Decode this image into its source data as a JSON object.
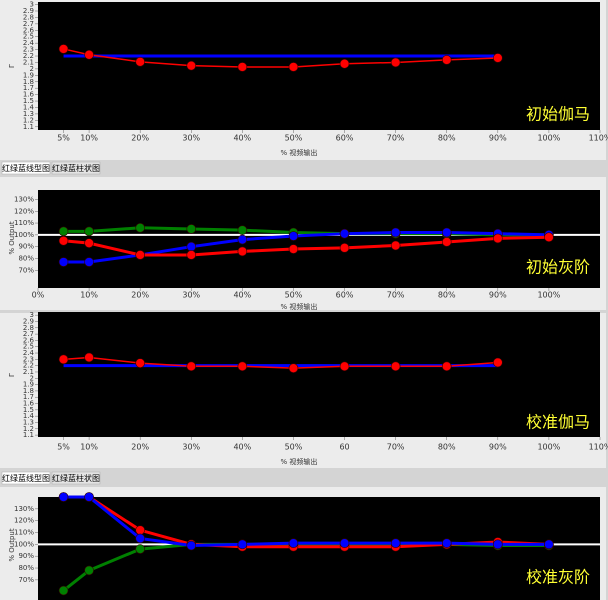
{
  "tab_bars": [
    {
      "tabs": [
        "红绿蓝线型图",
        "红绿蓝柱状图"
      ]
    },
    {
      "tabs": [
        "红绿蓝线型图",
        "红绿蓝柱状图"
      ]
    }
  ],
  "chart_data": [
    {
      "type": "line",
      "title": "初始伽马",
      "xlabel": "% 视频输出",
      "ylabel": "Γ",
      "xlim": [
        0,
        110
      ],
      "ylim": [
        1.05,
        3.04
      ],
      "xticks": [
        {
          "value": 5,
          "label": "5%"
        },
        {
          "value": 10,
          "label": "10%"
        },
        {
          "value": 20,
          "label": "20%"
        },
        {
          "value": 30,
          "label": "30%"
        },
        {
          "value": 40,
          "label": "40%"
        },
        {
          "value": 50,
          "label": "50%"
        },
        {
          "value": 60,
          "label": "60%"
        },
        {
          "value": 70,
          "label": "70%"
        },
        {
          "value": 80,
          "label": "80%"
        },
        {
          "value": 90,
          "label": "90%"
        },
        {
          "value": 100,
          "label": "100%"
        },
        {
          "value": 110,
          "label": "110%"
        }
      ],
      "yticks": [
        1.1,
        1.2,
        1.3,
        1.4,
        1.5,
        1.6,
        1.7,
        1.8,
        1.9,
        2,
        2.1,
        2.2,
        2.3,
        2.4,
        2.5,
        2.6,
        2.7,
        2.8,
        2.9,
        3
      ],
      "series": [
        {
          "color": "#0000ff",
          "line_width": 3,
          "markers": false,
          "x": [
            5,
            90
          ],
          "values": [
            2.2,
            2.2
          ]
        },
        {
          "color": "#ff0000",
          "line_width": 1.5,
          "markers": true,
          "x": [
            5,
            10,
            20,
            30,
            40,
            50,
            60,
            70,
            80,
            90
          ],
          "values": [
            2.31,
            2.22,
            2.11,
            2.05,
            2.03,
            2.03,
            2.08,
            2.1,
            2.14,
            2.17
          ]
        }
      ]
    },
    {
      "type": "line",
      "title": "初始灰阶",
      "xlabel": "% 视频输出",
      "ylabel": "% Output",
      "xlim": [
        0,
        110
      ],
      "ylim": [
        55,
        138
      ],
      "xticks": [
        {
          "value": 0,
          "label": "0%"
        },
        {
          "value": 10,
          "label": "10%"
        },
        {
          "value": 20,
          "label": "20%"
        },
        {
          "value": 30,
          "label": "30%"
        },
        {
          "value": 40,
          "label": "40%"
        },
        {
          "value": 50,
          "label": "50%"
        },
        {
          "value": 60,
          "label": "60%"
        },
        {
          "value": 70,
          "label": "70%"
        },
        {
          "value": 80,
          "label": "80%"
        },
        {
          "value": 90,
          "label": "90%"
        },
        {
          "value": 100,
          "label": "100%"
        }
      ],
      "yticks": [
        {
          "value": 70,
          "label": "70%"
        },
        {
          "value": 80,
          "label": "80%"
        },
        {
          "value": 90,
          "label": "90%"
        },
        {
          "value": 100,
          "label": "100%"
        },
        {
          "value": 110,
          "label": "110%"
        },
        {
          "value": 120,
          "label": "120%"
        },
        {
          "value": 130,
          "label": "130%"
        }
      ],
      "hline": {
        "value": 100,
        "color": "#ffffff"
      },
      "series": [
        {
          "color": "#008000",
          "line_width": 3,
          "markers": true,
          "x": [
            5,
            10,
            20,
            30,
            40,
            50,
            60,
            70,
            80,
            90,
            100
          ],
          "values": [
            103,
            103,
            106,
            105,
            104,
            102,
            101,
            101,
            101,
            100,
            100
          ]
        },
        {
          "color": "#0000ff",
          "line_width": 3,
          "markers": true,
          "x": [
            5,
            10,
            20,
            30,
            40,
            50,
            60,
            70,
            80,
            90,
            100
          ],
          "values": [
            77,
            77,
            83,
            90,
            96,
            99,
            101,
            102,
            102,
            101,
            100
          ]
        },
        {
          "color": "#ff0000",
          "line_width": 3,
          "markers": true,
          "x": [
            5,
            10,
            20,
            30,
            40,
            50,
            60,
            70,
            80,
            90,
            100
          ],
          "values": [
            95,
            93,
            83,
            83,
            86,
            88,
            89,
            91,
            94,
            97,
            98
          ]
        }
      ]
    },
    {
      "type": "line",
      "title": "校准伽马",
      "xlabel": "% 视频输出",
      "ylabel": "Γ",
      "xlim": [
        0,
        110
      ],
      "ylim": [
        1.07,
        3.05
      ],
      "xticks": [
        {
          "value": 5,
          "label": "5%"
        },
        {
          "value": 10,
          "label": "10%"
        },
        {
          "value": 20,
          "label": "20%"
        },
        {
          "value": 30,
          "label": "30%"
        },
        {
          "value": 40,
          "label": "40%"
        },
        {
          "value": 50,
          "label": "50%"
        },
        {
          "value": 60,
          "label": "60"
        },
        {
          "value": 70,
          "label": "70%"
        },
        {
          "value": 80,
          "label": "80%"
        },
        {
          "value": 90,
          "label": "90%"
        },
        {
          "value": 100,
          "label": "100%"
        },
        {
          "value": 110,
          "label": "110%"
        }
      ],
      "yticks": [
        1.1,
        1.2,
        1.3,
        1.4,
        1.5,
        1.6,
        1.7,
        1.8,
        1.9,
        2,
        2.1,
        2.2,
        2.3,
        2.4,
        2.5,
        2.6,
        2.7,
        2.8,
        2.9,
        3
      ],
      "series": [
        {
          "color": "#0000ff",
          "line_width": 3,
          "markers": false,
          "x": [
            5,
            90
          ],
          "values": [
            2.2,
            2.2
          ]
        },
        {
          "color": "#ff0000",
          "line_width": 1.5,
          "markers": true,
          "x": [
            5,
            10,
            20,
            30,
            40,
            50,
            60,
            70,
            80,
            90
          ],
          "values": [
            2.3,
            2.33,
            2.24,
            2.19,
            2.19,
            2.16,
            2.19,
            2.19,
            2.19,
            2.25
          ]
        }
      ]
    },
    {
      "type": "line",
      "title": "校准灰阶",
      "ylabel": "% Output",
      "xlim": [
        0,
        110
      ],
      "ylim": [
        53,
        140
      ],
      "yticks": [
        {
          "value": 70,
          "label": "70%"
        },
        {
          "value": 80,
          "label": "80%"
        },
        {
          "value": 90,
          "label": "90%"
        },
        {
          "value": 100,
          "label": "100%"
        },
        {
          "value": 110,
          "label": "110%"
        },
        {
          "value": 120,
          "label": "120%"
        },
        {
          "value": 130,
          "label": "130%"
        }
      ],
      "hline": {
        "value": 100,
        "color": "#ffffff"
      },
      "series": [
        {
          "color": "#008000",
          "line_width": 3,
          "markers": true,
          "x": [
            5,
            10,
            20,
            30,
            40,
            50,
            60,
            70,
            80,
            90,
            100
          ],
          "values": [
            61,
            78,
            96,
            100,
            100,
            100,
            100,
            100,
            100,
            99,
            99
          ]
        },
        {
          "color": "#ff0000",
          "line_width": 3,
          "markers": true,
          "x": [
            5,
            10,
            20,
            30,
            40,
            50,
            60,
            70,
            80,
            90,
            100
          ],
          "values": [
            140,
            140,
            112,
            100,
            98,
            98,
            98,
            98,
            100,
            102,
            100
          ]
        },
        {
          "color": "#0000ff",
          "line_width": 3,
          "markers": true,
          "x": [
            5,
            10,
            20,
            30,
            40,
            50,
            60,
            70,
            80,
            90,
            100
          ],
          "values": [
            140,
            140,
            105,
            99,
            100,
            101,
            101,
            101,
            101,
            100,
            100
          ]
        }
      ]
    }
  ]
}
